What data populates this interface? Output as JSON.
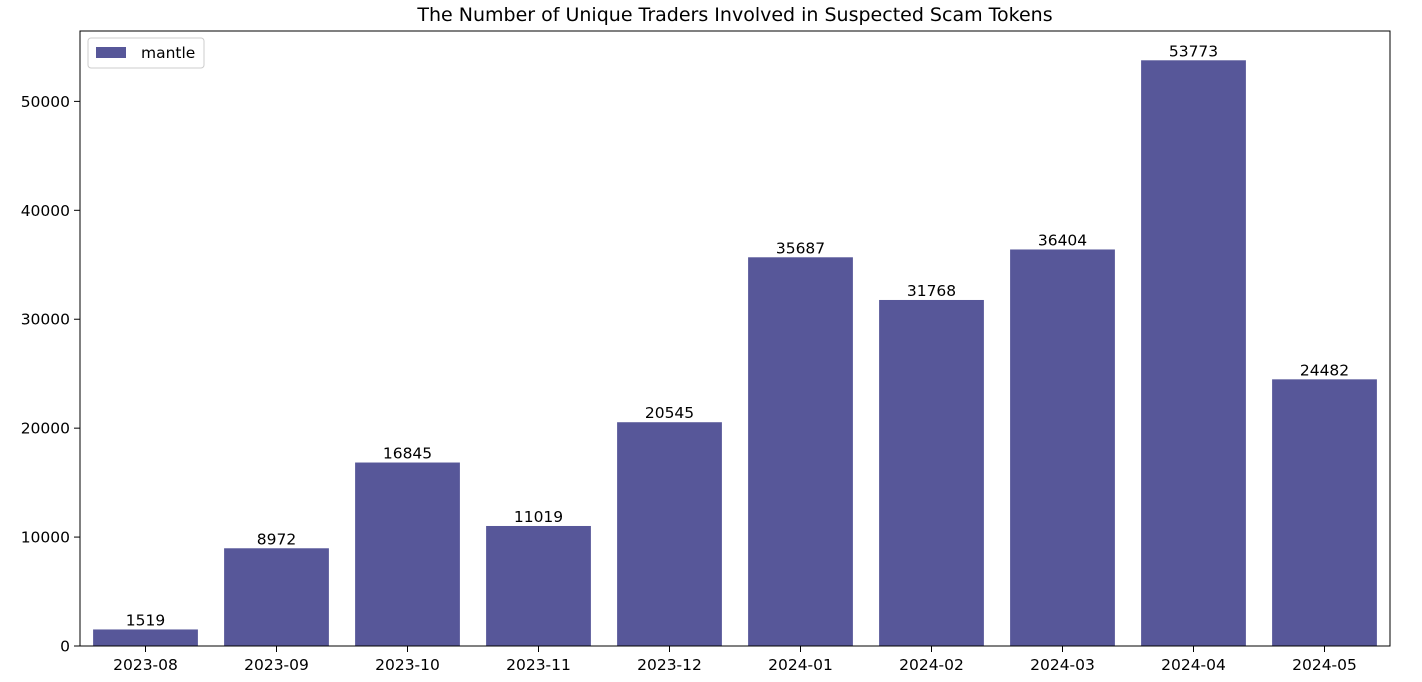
{
  "chart_data": {
    "type": "bar",
    "title": "The Number of Unique Traders Involved in Suspected Scam Tokens",
    "xlabel": "",
    "ylabel": "",
    "categories": [
      "2023-08",
      "2023-09",
      "2023-10",
      "2023-11",
      "2023-12",
      "2024-01",
      "2024-02",
      "2024-03",
      "2024-04",
      "2024-05"
    ],
    "series": [
      {
        "name": "mantle",
        "values": [
          1519,
          8972,
          16845,
          11019,
          20545,
          35687,
          31768,
          36404,
          53773,
          24482
        ]
      }
    ],
    "ylim": [
      0,
      56462
    ],
    "yticks": [
      0,
      10000,
      20000,
      30000,
      40000,
      50000
    ],
    "grid": false,
    "legend_position": "top-left",
    "colors": {
      "bar": "#575799",
      "axis": "#000000",
      "background": "#ffffff"
    }
  }
}
